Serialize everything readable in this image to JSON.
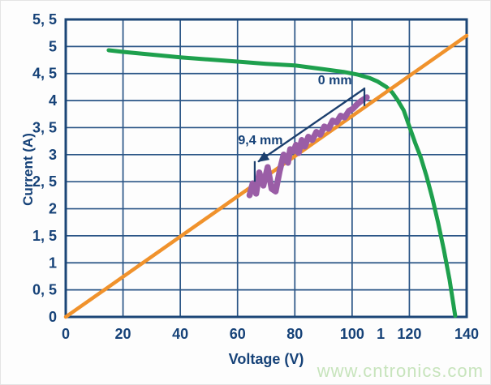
{
  "chart_data": {
    "type": "line",
    "title": "",
    "xlabel": "Voltage (V)",
    "ylabel": "Current (A)",
    "xlim": [
      0,
      140
    ],
    "ylim": [
      0,
      5.5
    ],
    "x_gridline_step": 20,
    "y_gridline_step": 0.5,
    "grid": true,
    "legend_position": "none",
    "decimal_style": "comma",
    "x_tick_labels": [
      {
        "v": 0,
        "label": "0"
      },
      {
        "v": 20,
        "label": "20"
      },
      {
        "v": 40,
        "label": "40"
      },
      {
        "v": 60,
        "label": "60"
      },
      {
        "v": 80,
        "label": "80"
      },
      {
        "v": 100,
        "label": "100"
      },
      {
        "v": 110,
        "label": "1"
      },
      {
        "v": 120,
        "label": "120"
      },
      {
        "v": 140,
        "label": "140"
      }
    ],
    "y_tick_labels": [
      {
        "i": 0,
        "label": "0"
      },
      {
        "i": 0.5,
        "label": "0, 5"
      },
      {
        "i": 1,
        "label": "1"
      },
      {
        "i": 1.5,
        "label": "1, 5"
      },
      {
        "i": 2,
        "label": "2"
      },
      {
        "i": 2.5,
        "label": "2, 5"
      },
      {
        "i": 3,
        "label": "3"
      },
      {
        "i": 3.5,
        "label": "3, 5"
      },
      {
        "i": 4,
        "label": "4"
      },
      {
        "i": 4.5,
        "label": "4, 5"
      },
      {
        "i": 5,
        "label": "5"
      },
      {
        "i": 5.5,
        "label": "5, 5"
      }
    ],
    "series": [
      {
        "name": "pv-iv-curve",
        "color": "#1ea04d",
        "width": 5,
        "points": [
          [
            15,
            4.93
          ],
          [
            20,
            4.9
          ],
          [
            30,
            4.85
          ],
          [
            40,
            4.8
          ],
          [
            50,
            4.76
          ],
          [
            60,
            4.72
          ],
          [
            70,
            4.68
          ],
          [
            80,
            4.65
          ],
          [
            90,
            4.58
          ],
          [
            97,
            4.53
          ],
          [
            102,
            4.48
          ],
          [
            106,
            4.42
          ],
          [
            109,
            4.35
          ],
          [
            112,
            4.25
          ],
          [
            114,
            4.15
          ],
          [
            116,
            4.0
          ],
          [
            118,
            3.82
          ],
          [
            120,
            3.52
          ],
          [
            122,
            3.22
          ],
          [
            124,
            2.95
          ],
          [
            126,
            2.6
          ],
          [
            128,
            2.2
          ],
          [
            130,
            1.75
          ],
          [
            132,
            1.25
          ],
          [
            134,
            0.7
          ],
          [
            136,
            0.02
          ]
        ]
      },
      {
        "name": "load-line",
        "color": "#f0922c",
        "width": 4.5,
        "points": [
          [
            0,
            0
          ],
          [
            140,
            5.2
          ]
        ]
      },
      {
        "name": "measurement-trace",
        "color": "#9a5da6",
        "width": 7.5,
        "points": [
          [
            64.2,
            2.25
          ],
          [
            65.3,
            2.47
          ],
          [
            66.5,
            2.28
          ],
          [
            67.6,
            2.67
          ],
          [
            69.0,
            2.43
          ],
          [
            70.5,
            2.77
          ],
          [
            71.9,
            2.37
          ],
          [
            73.3,
            2.32
          ],
          [
            74.7,
            2.7
          ],
          [
            76.1,
            3.0
          ],
          [
            77.6,
            2.85
          ],
          [
            78.4,
            3.1
          ],
          [
            79.5,
            3.06
          ],
          [
            80.4,
            3.18
          ],
          [
            81.3,
            3.03
          ],
          [
            82.4,
            3.27
          ],
          [
            83.5,
            3.15
          ],
          [
            84.7,
            3.33
          ],
          [
            86.1,
            3.27
          ],
          [
            87.5,
            3.42
          ],
          [
            88.9,
            3.37
          ],
          [
            90.3,
            3.52
          ],
          [
            91.8,
            3.48
          ],
          [
            93.2,
            3.63
          ],
          [
            94.6,
            3.6
          ],
          [
            96.0,
            3.72
          ],
          [
            97.4,
            3.69
          ],
          [
            98.9,
            3.81
          ],
          [
            100.3,
            3.85
          ],
          [
            101.7,
            3.93
          ],
          [
            103.1,
            3.99
          ],
          [
            105.1,
            4.06
          ]
        ]
      }
    ],
    "annotations": {
      "color": "#1c3f6e",
      "labels": [
        {
          "id": "zero-mm",
          "text": "0 mm",
          "v": 94.0,
          "i": 4.3
        },
        {
          "id": "nine-four-mm",
          "text": "9,4 mm",
          "v": 68.0,
          "i": 3.19
        }
      ],
      "ticks": [
        {
          "v": 104.3,
          "i1": 4.24,
          "i2": 3.9
        },
        {
          "v": 66.0,
          "i1": 2.88,
          "i2": 2.5
        }
      ],
      "arrow": {
        "from_v": 104.3,
        "from_i": 4.22,
        "to_v": 67.2,
        "to_i": 2.87
      }
    },
    "colors": {
      "grid": "#2a5586",
      "plot_border": "#1c4677",
      "axis_text": "#164278",
      "background": "#ffffff"
    }
  },
  "watermark": {
    "text": "www.cntronics.com",
    "color": "#c7e4bc"
  }
}
